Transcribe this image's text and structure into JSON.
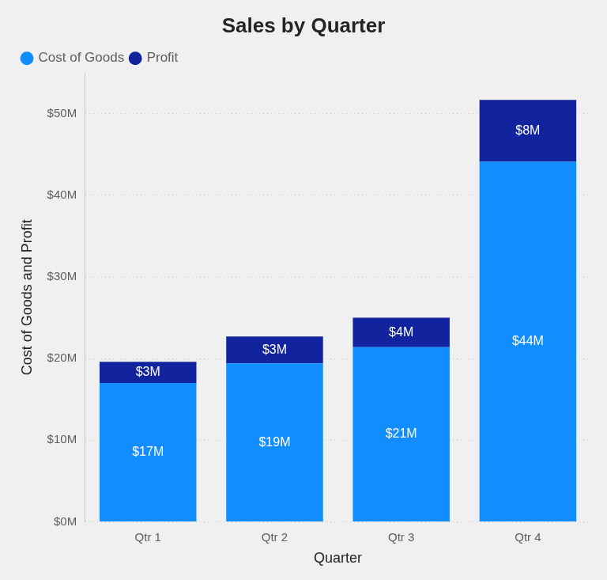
{
  "chart_data": {
    "type": "bar",
    "title": "Sales by Quarter",
    "x_label": "Quarter",
    "y_label": "Cost of Goods and Profit",
    "categories": [
      "Qtr 1",
      "Qtr 2",
      "Qtr 3",
      "Qtr 4"
    ],
    "series": [
      {
        "name": "Cost of Goods",
        "color": "#118DFF",
        "values": [
          17.0,
          19.4,
          21.4,
          44.1
        ],
        "value_labels": [
          "$17M",
          "$19M",
          "$21M",
          "$44M"
        ]
      },
      {
        "name": "Profit",
        "color": "#12239E",
        "values": [
          2.6,
          3.3,
          3.6,
          7.6
        ],
        "value_labels": [
          "$3M",
          "$3M",
          "$4M",
          "$8M"
        ]
      }
    ],
    "ylim": [
      0,
      55
    ],
    "yticks": [
      {
        "value": 0,
        "label": "$0M"
      },
      {
        "value": 10,
        "label": "$10M"
      },
      {
        "value": 20,
        "label": "$20M"
      },
      {
        "value": 30,
        "label": "$30M"
      },
      {
        "value": 40,
        "label": "$40M"
      },
      {
        "value": 50,
        "label": "$50M"
      }
    ],
    "stacked": true,
    "data_labels": true,
    "grid": true,
    "legend": "top-left"
  }
}
